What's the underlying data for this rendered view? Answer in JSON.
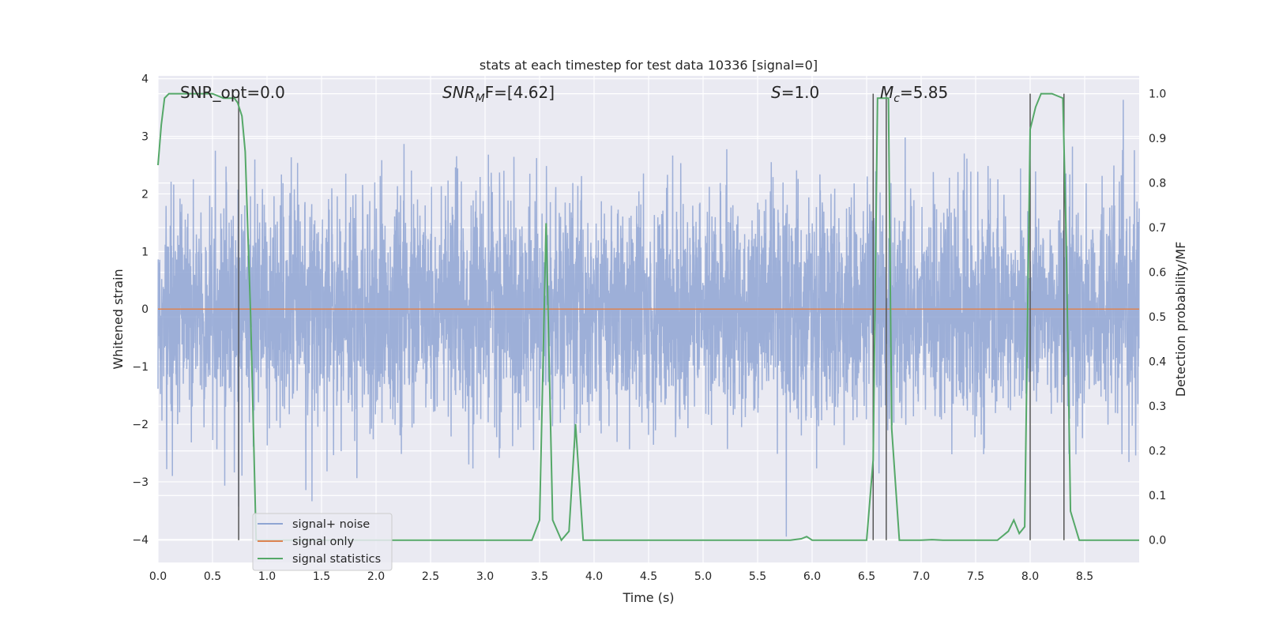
{
  "chart_data": {
    "type": "line",
    "title": "stats at each timestep for test data 10336 [signal=0]",
    "xlabel": "Time (s)",
    "ylabel": "Whitened strain",
    "y2label": "Detection probability/MF",
    "xlim": [
      0,
      9.0
    ],
    "ylim": [
      -4.4,
      4.05
    ],
    "y2lim": [
      -0.05,
      1.04
    ],
    "xticks": [
      "0.0",
      "0.5",
      "1.0",
      "1.5",
      "2.0",
      "2.5",
      "3.0",
      "3.5",
      "4.0",
      "4.5",
      "5.0",
      "5.5",
      "6.0",
      "6.5",
      "7.0",
      "7.5",
      "8.0",
      "8.5"
    ],
    "yticks": [
      "−4",
      "−3",
      "−2",
      "−1",
      "0",
      "1",
      "2",
      "3",
      "4"
    ],
    "y2ticks": [
      "0.0",
      "0.1",
      "0.2",
      "0.3",
      "0.4",
      "0.5",
      "0.6",
      "0.7",
      "0.8",
      "0.9",
      "1.0"
    ],
    "grid": true,
    "legend_position": "bottom-left",
    "annotations": {
      "snr_opt": "SNR_opt=0.0",
      "snr_mf_base": "SNR",
      "snr_mf_sub": "M",
      "snr_mf_rest": "F=[4.62]",
      "s_italic": "S",
      "s_rest": "=1.0",
      "mc_base": "M",
      "mc_sub": "c",
      "mc_rest": "=5.85"
    },
    "series": [
      {
        "name": "signal+ noise",
        "color": "#8fa5d3",
        "note_values": "whitened noise strain, approx. gaussian",
        "std": 0.95,
        "range": [
          -3.95,
          3.7
        ]
      },
      {
        "name": "signal only",
        "color": "#dd8452",
        "x": [
          0,
          9.0
        ],
        "y": [
          0,
          0
        ]
      },
      {
        "name": "signal statistics",
        "color": "#55a868",
        "axis": "right",
        "x": [
          0.0,
          0.03,
          0.06,
          0.1,
          0.15,
          0.2,
          0.3,
          0.4,
          0.5,
          0.6,
          0.7,
          0.73,
          0.77,
          0.8,
          0.85,
          0.9,
          1.0,
          1.5,
          2.0,
          2.5,
          3.0,
          3.3,
          3.43,
          3.5,
          3.56,
          3.62,
          3.7,
          3.77,
          3.83,
          3.9,
          4.0,
          4.5,
          5.0,
          5.5,
          5.8,
          5.9,
          5.95,
          6.0,
          6.2,
          6.4,
          6.5,
          6.56,
          6.6,
          6.63,
          6.7,
          6.73,
          6.8,
          7.0,
          7.1,
          7.2,
          7.5,
          7.7,
          7.8,
          7.85,
          7.9,
          7.95,
          8.0,
          8.05,
          8.1,
          8.2,
          8.3,
          8.33,
          8.37,
          8.45,
          8.5,
          9.0
        ],
        "y": [
          0.84,
          0.93,
          0.99,
          1.0,
          1.0,
          1.0,
          1.0,
          1.0,
          1.0,
          0.99,
          0.99,
          0.98,
          0.95,
          0.87,
          0.5,
          0.0,
          0.0,
          0.0,
          0.0,
          0.0,
          0.0,
          0.0,
          0.0,
          0.045,
          0.71,
          0.045,
          0.0,
          0.02,
          0.26,
          0.0,
          0.0,
          0.0,
          0.0,
          0.0,
          0.0,
          0.003,
          0.008,
          0.0,
          0.0,
          0.0,
          0.0,
          0.18,
          0.99,
          0.99,
          0.99,
          0.25,
          0.0,
          0.0,
          0.001,
          0.0,
          0.0,
          0.0,
          0.02,
          0.045,
          0.015,
          0.03,
          0.92,
          0.97,
          1.0,
          1.0,
          0.99,
          0.68,
          0.065,
          0.0,
          0.0,
          0.0
        ]
      }
    ],
    "vertical_lines": [
      0.74,
      6.56,
      6.68,
      8.0,
      8.31
    ]
  }
}
